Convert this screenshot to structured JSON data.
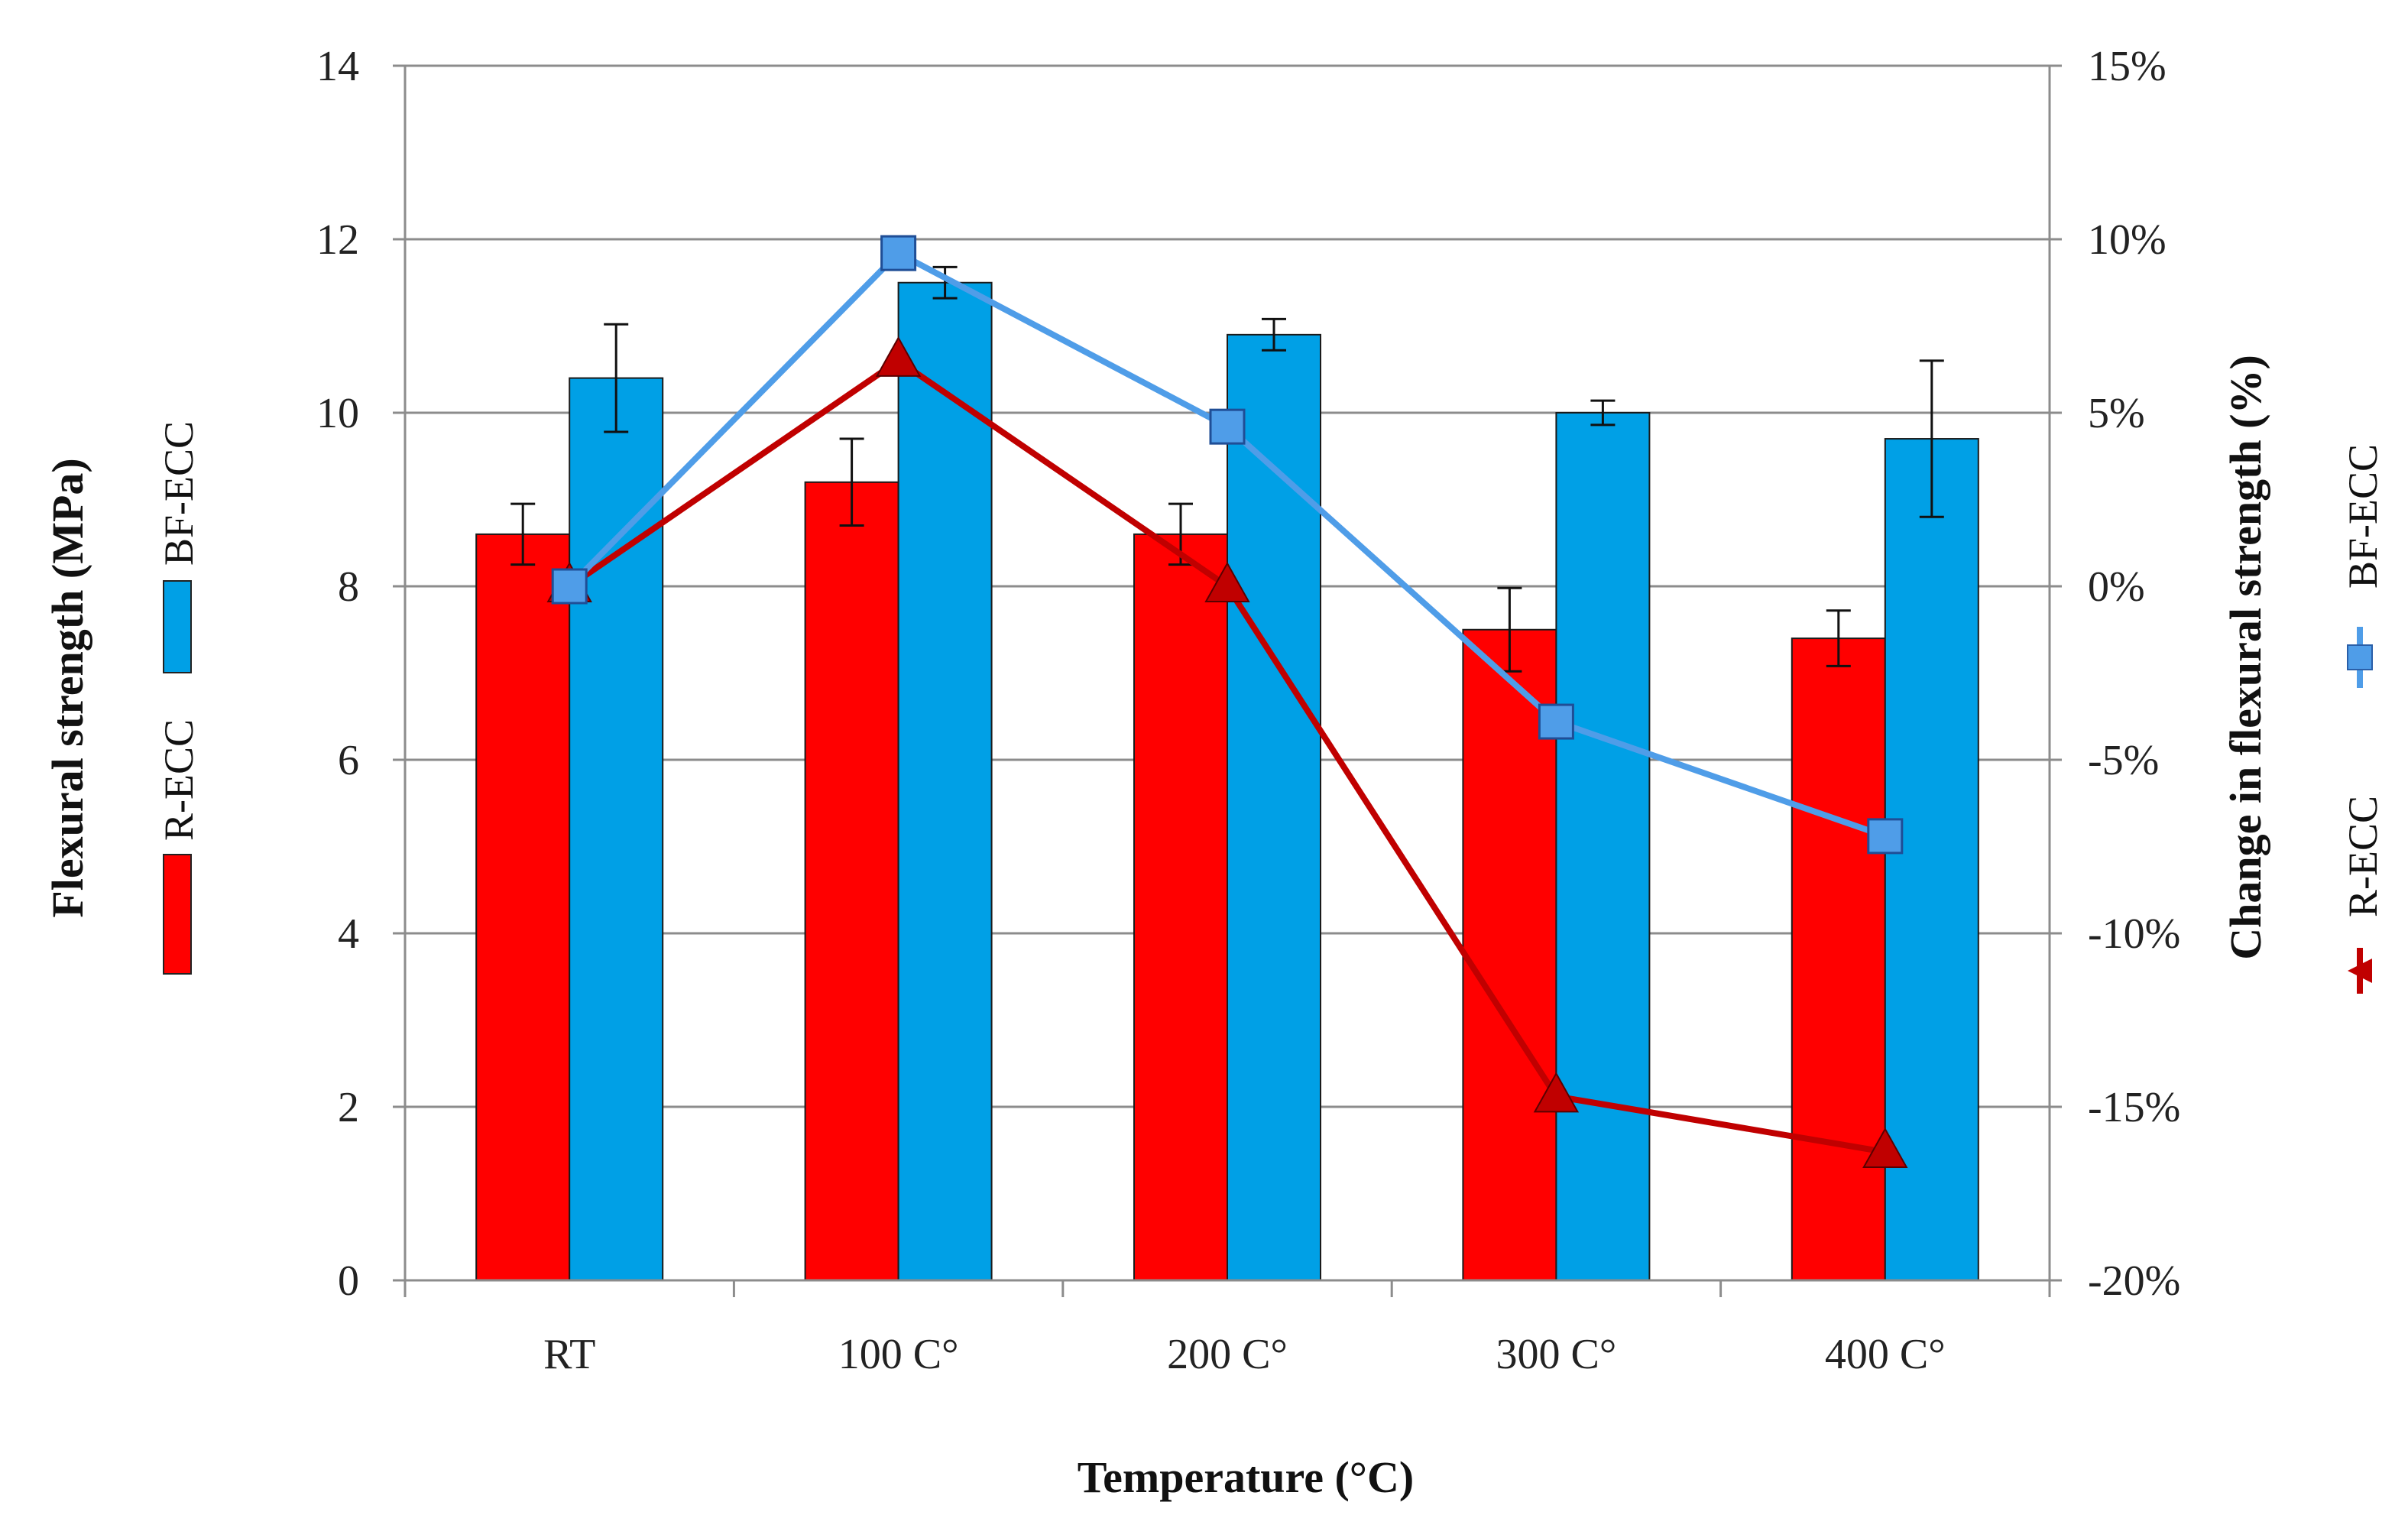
{
  "chart_data": {
    "type": "bar",
    "xlabel": "Temperature (°C)",
    "categories": [
      "RT",
      "100 C°",
      "200 C°",
      "300 C°",
      "400 C°"
    ],
    "left_axis": {
      "label": "Flexural strength (MPa)",
      "range": [
        0,
        14
      ],
      "ticks": [
        "0",
        "2",
        "4",
        "6",
        "8",
        "10",
        "12",
        "14"
      ]
    },
    "right_axis": {
      "label": "Change in flexural strength (%)",
      "range": [
        -20,
        15
      ],
      "ticks": [
        "-20%",
        "-15%",
        "-10%",
        "-5%",
        "0%",
        "5%",
        "10%",
        "15%"
      ]
    },
    "grid": true,
    "bar_series": [
      {
        "name": "R-ECC",
        "color": "#ff0000",
        "values": [
          8.6,
          9.2,
          8.6,
          7.5,
          7.4
        ],
        "errors": [
          0.35,
          0.5,
          0.35,
          0.48,
          0.32
        ]
      },
      {
        "name": "BF-ECC",
        "color": "#00a0e6",
        "values": [
          10.4,
          11.5,
          10.9,
          10.0,
          9.7
        ],
        "errors": [
          0.62,
          0.18,
          0.18,
          0.14,
          0.9
        ]
      }
    ],
    "line_series": [
      {
        "name": "R-ECC",
        "axis": "right",
        "marker": "triangle",
        "color": "#c00000",
        "values": [
          0.0,
          6.5,
          0.0,
          -14.7,
          -16.3
        ]
      },
      {
        "name": "BF-ECC",
        "axis": "right",
        "marker": "square",
        "color": "#4f9de8",
        "values": [
          0.0,
          9.6,
          4.6,
          -3.9,
          -7.2
        ]
      }
    ],
    "legend_left": [
      "R-ECC",
      "BF-ECC"
    ],
    "legend_right": [
      "R-ECC",
      "BF-ECC"
    ]
  }
}
